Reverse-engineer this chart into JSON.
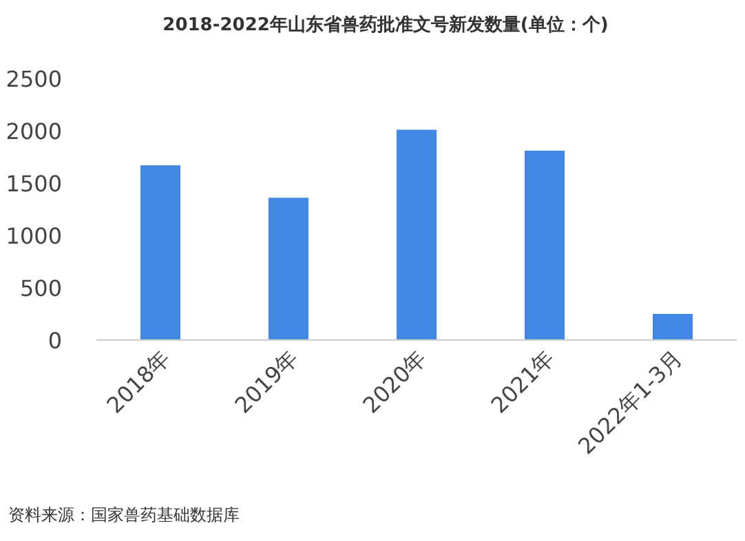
{
  "chart_data": {
    "type": "bar",
    "title": "2018-2022年山东省兽药批准文号新发数量(单位：个)",
    "categories": [
      "2018年",
      "2019年",
      "2020年",
      "2021年",
      "2022年1-3月"
    ],
    "values": [
      1670,
      1360,
      2010,
      1810,
      250
    ],
    "color": "#4287e3",
    "ylim": [
      0,
      2500
    ],
    "yticks": [
      0,
      500,
      1000,
      1500,
      2000,
      2500
    ],
    "grid": false,
    "annotations": [
      "资料来源：国家兽药基础数据库"
    ]
  }
}
